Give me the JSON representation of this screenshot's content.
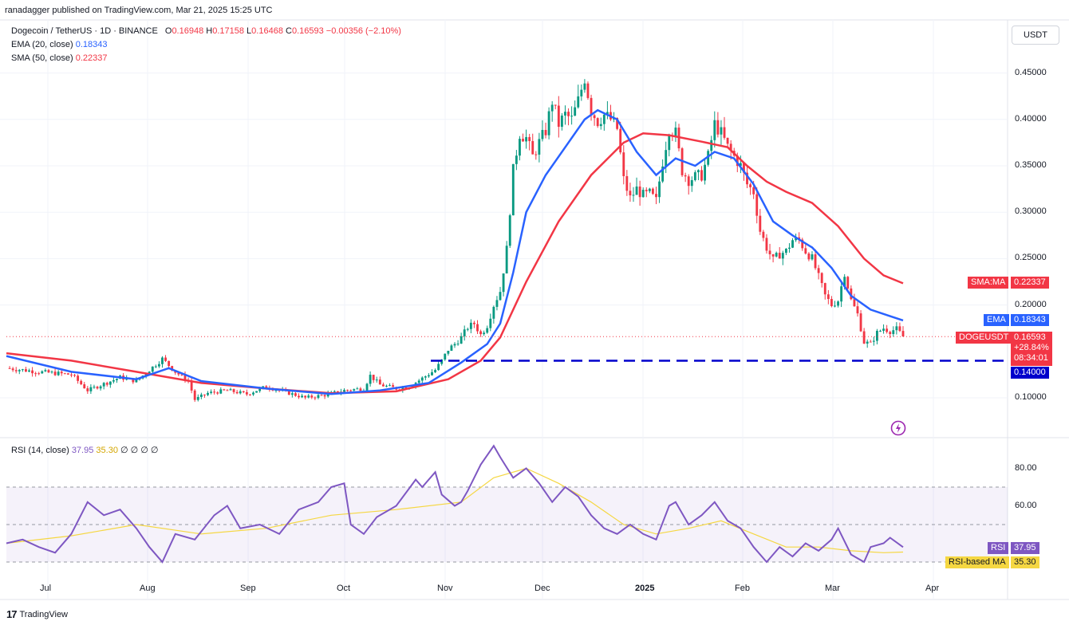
{
  "published": "ranadagger published on TradingView.com, Mar 21, 2025 15:25 UTC",
  "legend": {
    "symbol": "Dogecoin / TetherUS · 1D · BINANCE",
    "o_lbl": "O",
    "o": "0.16948",
    "h_lbl": "H",
    "h": "0.17158",
    "l_lbl": "L",
    "l": "0.16468",
    "c_lbl": "C",
    "c": "0.16593",
    "chg": "−0.00356 (−2.10%)",
    "ema_lbl": "EMA (20, close)",
    "ema": "0.18343",
    "sma_lbl": "SMA (50, close)",
    "sma": "0.22337"
  },
  "rsi_legend": {
    "lbl": "RSI (14, close)",
    "rsi": "37.95",
    "ma": "35.30",
    "rest": "∅ ∅ ∅ ∅"
  },
  "unit": "USDT",
  "tags": {
    "sma_name": "SMA:MA",
    "sma_val": "0.22337",
    "ema_name": "EMA",
    "ema_val": "0.18343",
    "sym_name": "DOGEUSDT",
    "sym_val": "0.16593",
    "sym_pct": "+28.84%",
    "sym_timer": "08:34:01",
    "support": "0.14000",
    "rsi_name": "RSI",
    "rsi_val": "37.95",
    "rsima_name": "RSI-based MA",
    "rsima_val": "35.30"
  },
  "footer": {
    "logo": "17",
    "brand": "TradingView"
  },
  "colors": {
    "up": "#089981",
    "down": "#f23645",
    "ema": "#2962ff",
    "sma": "#f23645",
    "rsi": "#7e57c2",
    "rsi_ma": "#f5d742",
    "support": "#0000cc"
  },
  "chart_data": {
    "type": "line",
    "price_axis": {
      "ticks": [
        "0.45000",
        "0.40000",
        "0.35000",
        "0.30000",
        "0.25000",
        "0.20000",
        "0.10000"
      ]
    },
    "rsi_axis": {
      "ticks": [
        "80.00",
        "60.00"
      ],
      "bands": [
        30,
        50,
        70
      ]
    },
    "time_axis": [
      "Jul",
      "Aug",
      "Sep",
      "Oct",
      "Nov",
      "Dec",
      "2025",
      "Feb",
      "Mar",
      "Apr"
    ],
    "support_level": 0.14,
    "last_close": 0.16593,
    "close": [
      [
        0,
        0.132
      ],
      [
        10,
        0.128
      ],
      [
        20,
        0.125
      ],
      [
        25,
        0.108
      ],
      [
        30,
        0.115
      ],
      [
        35,
        0.122
      ],
      [
        40,
        0.118
      ],
      [
        44,
        0.13
      ],
      [
        48,
        0.142
      ],
      [
        52,
        0.128
      ],
      [
        56,
        0.118
      ],
      [
        58,
        0.098
      ],
      [
        62,
        0.105
      ],
      [
        68,
        0.108
      ],
      [
        74,
        0.104
      ],
      [
        80,
        0.112
      ],
      [
        86,
        0.106
      ],
      [
        92,
        0.1
      ],
      [
        98,
        0.103
      ],
      [
        104,
        0.108
      ],
      [
        110,
        0.11
      ],
      [
        112,
        0.124
      ],
      [
        115,
        0.114
      ],
      [
        120,
        0.11
      ],
      [
        124,
        0.112
      ],
      [
        128,
        0.121
      ],
      [
        132,
        0.13
      ],
      [
        134,
        0.14
      ],
      [
        136,
        0.152
      ],
      [
        138,
        0.158
      ],
      [
        140,
        0.165
      ],
      [
        142,
        0.176
      ],
      [
        144,
        0.18
      ],
      [
        146,
        0.168
      ],
      [
        148,
        0.178
      ],
      [
        150,
        0.2
      ],
      [
        152,
        0.215
      ],
      [
        154,
        0.26
      ],
      [
        156,
        0.345
      ],
      [
        158,
        0.385
      ],
      [
        160,
        0.38
      ],
      [
        162,
        0.36
      ],
      [
        164,
        0.375
      ],
      [
        166,
        0.388
      ],
      [
        168,
        0.42
      ],
      [
        170,
        0.395
      ],
      [
        172,
        0.405
      ],
      [
        174,
        0.4
      ],
      [
        176,
        0.42
      ],
      [
        178,
        0.445
      ],
      [
        180,
        0.41
      ],
      [
        182,
        0.398
      ],
      [
        184,
        0.405
      ],
      [
        186,
        0.4
      ],
      [
        188,
        0.39
      ],
      [
        190,
        0.335
      ],
      [
        192,
        0.315
      ],
      [
        194,
        0.325
      ],
      [
        196,
        0.318
      ],
      [
        198,
        0.32
      ],
      [
        200,
        0.312
      ],
      [
        202,
        0.355
      ],
      [
        204,
        0.39
      ],
      [
        206,
        0.385
      ],
      [
        208,
        0.345
      ],
      [
        210,
        0.335
      ],
      [
        212,
        0.338
      ],
      [
        214,
        0.34
      ],
      [
        216,
        0.36
      ],
      [
        218,
        0.395
      ],
      [
        220,
        0.385
      ],
      [
        222,
        0.37
      ],
      [
        224,
        0.36
      ],
      [
        226,
        0.35
      ],
      [
        228,
        0.33
      ],
      [
        230,
        0.322
      ],
      [
        232,
        0.28
      ],
      [
        234,
        0.262
      ],
      [
        236,
        0.248
      ],
      [
        238,
        0.255
      ],
      [
        240,
        0.258
      ],
      [
        242,
        0.27
      ],
      [
        244,
        0.27
      ],
      [
        246,
        0.258
      ],
      [
        248,
        0.25
      ],
      [
        250,
        0.23
      ],
      [
        252,
        0.21
      ],
      [
        254,
        0.2
      ],
      [
        256,
        0.205
      ],
      [
        258,
        0.235
      ],
      [
        260,
        0.205
      ],
      [
        262,
        0.19
      ],
      [
        264,
        0.16
      ],
      [
        266,
        0.158
      ],
      [
        268,
        0.17
      ],
      [
        270,
        0.175
      ],
      [
        272,
        0.172
      ],
      [
        274,
        0.174
      ],
      [
        276,
        0.166
      ]
    ],
    "ema20": [
      [
        0,
        0.145
      ],
      [
        20,
        0.128
      ],
      [
        40,
        0.12
      ],
      [
        50,
        0.132
      ],
      [
        60,
        0.118
      ],
      [
        80,
        0.11
      ],
      [
        100,
        0.104
      ],
      [
        115,
        0.108
      ],
      [
        130,
        0.116
      ],
      [
        140,
        0.138
      ],
      [
        148,
        0.158
      ],
      [
        152,
        0.18
      ],
      [
        156,
        0.235
      ],
      [
        160,
        0.3
      ],
      [
        166,
        0.34
      ],
      [
        172,
        0.37
      ],
      [
        178,
        0.4
      ],
      [
        182,
        0.41
      ],
      [
        188,
        0.4
      ],
      [
        194,
        0.365
      ],
      [
        200,
        0.34
      ],
      [
        206,
        0.358
      ],
      [
        212,
        0.35
      ],
      [
        218,
        0.365
      ],
      [
        224,
        0.358
      ],
      [
        230,
        0.33
      ],
      [
        236,
        0.29
      ],
      [
        242,
        0.275
      ],
      [
        248,
        0.262
      ],
      [
        254,
        0.24
      ],
      [
        260,
        0.21
      ],
      [
        266,
        0.195
      ],
      [
        272,
        0.188
      ],
      [
        276,
        0.18343
      ]
    ],
    "sma50": [
      [
        0,
        0.148
      ],
      [
        20,
        0.14
      ],
      [
        40,
        0.128
      ],
      [
        60,
        0.116
      ],
      [
        80,
        0.11
      ],
      [
        100,
        0.105
      ],
      [
        120,
        0.107
      ],
      [
        136,
        0.12
      ],
      [
        146,
        0.14
      ],
      [
        152,
        0.165
      ],
      [
        160,
        0.225
      ],
      [
        170,
        0.29
      ],
      [
        180,
        0.34
      ],
      [
        190,
        0.375
      ],
      [
        196,
        0.385
      ],
      [
        204,
        0.383
      ],
      [
        214,
        0.376
      ],
      [
        222,
        0.37
      ],
      [
        228,
        0.35
      ],
      [
        234,
        0.333
      ],
      [
        240,
        0.322
      ],
      [
        248,
        0.31
      ],
      [
        256,
        0.285
      ],
      [
        264,
        0.25
      ],
      [
        270,
        0.232
      ],
      [
        276,
        0.22337
      ]
    ],
    "rsi": [
      [
        0,
        40
      ],
      [
        5,
        42
      ],
      [
        10,
        38
      ],
      [
        15,
        35
      ],
      [
        20,
        45
      ],
      [
        25,
        62
      ],
      [
        30,
        55
      ],
      [
        35,
        58
      ],
      [
        40,
        48
      ],
      [
        44,
        38
      ],
      [
        48,
        30
      ],
      [
        52,
        45
      ],
      [
        58,
        42
      ],
      [
        64,
        55
      ],
      [
        68,
        60
      ],
      [
        72,
        48
      ],
      [
        78,
        50
      ],
      [
        84,
        45
      ],
      [
        90,
        58
      ],
      [
        96,
        62
      ],
      [
        100,
        70
      ],
      [
        104,
        72
      ],
      [
        106,
        50
      ],
      [
        110,
        45
      ],
      [
        114,
        54
      ],
      [
        120,
        60
      ],
      [
        126,
        74
      ],
      [
        128,
        70
      ],
      [
        132,
        78
      ],
      [
        134,
        66
      ],
      [
        138,
        60
      ],
      [
        140,
        62
      ],
      [
        142,
        68
      ],
      [
        146,
        82
      ],
      [
        150,
        92
      ],
      [
        152,
        86
      ],
      [
        156,
        75
      ],
      [
        160,
        80
      ],
      [
        164,
        72
      ],
      [
        168,
        62
      ],
      [
        172,
        70
      ],
      [
        176,
        65
      ],
      [
        180,
        55
      ],
      [
        184,
        48
      ],
      [
        188,
        45
      ],
      [
        192,
        50
      ],
      [
        196,
        45
      ],
      [
        200,
        42
      ],
      [
        204,
        60
      ],
      [
        206,
        62
      ],
      [
        210,
        50
      ],
      [
        214,
        55
      ],
      [
        218,
        62
      ],
      [
        222,
        52
      ],
      [
        226,
        48
      ],
      [
        230,
        38
      ],
      [
        234,
        30
      ],
      [
        238,
        38
      ],
      [
        242,
        33
      ],
      [
        246,
        40
      ],
      [
        250,
        36
      ],
      [
        254,
        42
      ],
      [
        256,
        48
      ],
      [
        260,
        34
      ],
      [
        264,
        30
      ],
      [
        266,
        38
      ],
      [
        270,
        40
      ],
      [
        272,
        43
      ],
      [
        276,
        37.95
      ]
    ],
    "rsi_ma": [
      [
        0,
        40
      ],
      [
        20,
        44
      ],
      [
        40,
        50
      ],
      [
        60,
        45
      ],
      [
        80,
        48
      ],
      [
        100,
        55
      ],
      [
        120,
        58
      ],
      [
        140,
        62
      ],
      [
        150,
        75
      ],
      [
        160,
        80
      ],
      [
        170,
        72
      ],
      [
        180,
        62
      ],
      [
        190,
        50
      ],
      [
        200,
        45
      ],
      [
        210,
        48
      ],
      [
        220,
        52
      ],
      [
        230,
        45
      ],
      [
        240,
        38
      ],
      [
        250,
        38
      ],
      [
        260,
        36
      ],
      [
        270,
        35
      ],
      [
        276,
        35.3
      ]
    ]
  }
}
